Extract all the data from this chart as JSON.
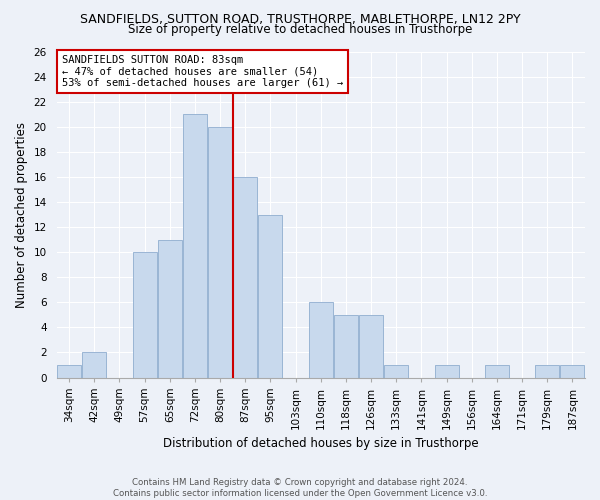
{
  "title": "SANDFIELDS, SUTTON ROAD, TRUSTHORPE, MABLETHORPE, LN12 2PY",
  "subtitle": "Size of property relative to detached houses in Trusthorpe",
  "xlabel": "Distribution of detached houses by size in Trusthorpe",
  "ylabel": "Number of detached properties",
  "bin_labels": [
    "34sqm",
    "42sqm",
    "49sqm",
    "57sqm",
    "65sqm",
    "72sqm",
    "80sqm",
    "87sqm",
    "95sqm",
    "103sqm",
    "110sqm",
    "118sqm",
    "126sqm",
    "133sqm",
    "141sqm",
    "149sqm",
    "156sqm",
    "164sqm",
    "171sqm",
    "179sqm",
    "187sqm"
  ],
  "counts": [
    1,
    2,
    0,
    10,
    11,
    21,
    20,
    16,
    13,
    0,
    6,
    5,
    5,
    1,
    0,
    1,
    0,
    1,
    0,
    1,
    1
  ],
  "bar_color": "#c8d9ed",
  "bar_edgecolor": "#9ab5d4",
  "property_size_index": 6,
  "vline_color": "#cc0000",
  "annotation_title": "SANDFIELDS SUTTON ROAD: 83sqm",
  "annotation_line1": "← 47% of detached houses are smaller (54)",
  "annotation_line2": "53% of semi-detached houses are larger (61) →",
  "annotation_box_edgecolor": "#cc0000",
  "annotation_box_facecolor": "#ffffff",
  "ylim": [
    0,
    26
  ],
  "yticks": [
    0,
    2,
    4,
    6,
    8,
    10,
    12,
    14,
    16,
    18,
    20,
    22,
    24,
    26
  ],
  "footer_line1": "Contains HM Land Registry data © Crown copyright and database right 2024.",
  "footer_line2": "Contains public sector information licensed under the Open Government Licence v3.0.",
  "bg_color": "#edf1f8",
  "grid_color": "#ffffff",
  "title_fontsize": 9,
  "subtitle_fontsize": 8.5,
  "axis_label_fontsize": 8.5,
  "tick_fontsize": 7.5,
  "footer_fontsize": 6.2
}
